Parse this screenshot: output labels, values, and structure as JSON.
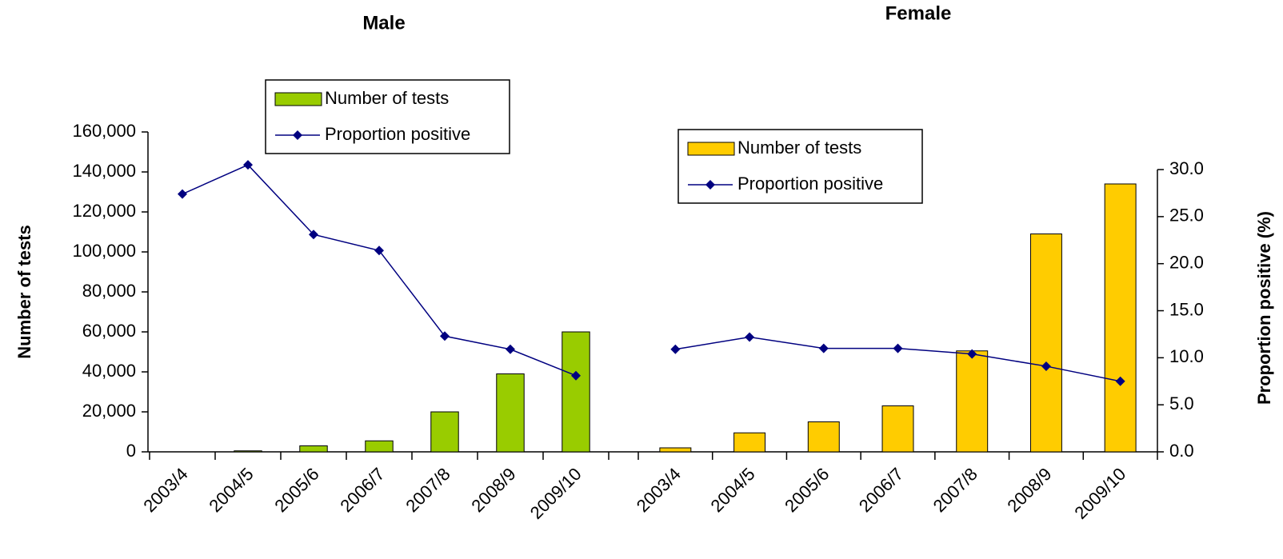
{
  "chart_data": [
    {
      "type": "bar_line",
      "title": "Male",
      "categories": [
        "2003/4",
        "2004/5",
        "2005/6",
        "2006/7",
        "2007/8",
        "2008/9",
        "2009/10"
      ],
      "series": [
        {
          "name": "Number of tests",
          "color": "#99cc00",
          "values": [
            0,
            500,
            3000,
            5500,
            20000,
            39000,
            60000
          ]
        },
        {
          "name": "Proportion positive",
          "color": "#000080",
          "axis": "y2",
          "values": [
            27.4,
            30.5,
            23.1,
            21.4,
            12.3,
            10.9,
            8.1
          ]
        }
      ],
      "ylabel": "Number of tests",
      "ylim": [
        0,
        160000
      ],
      "yticks": [
        0,
        {
          "value": 20000,
          "label": "20,000"
        },
        {
          "value": 40000,
          "label": "40,000"
        },
        {
          "value": 60000,
          "label": "60,000"
        },
        {
          "value": 80000,
          "label": "80,000"
        },
        {
          "value": 100000,
          "label": "100,000"
        },
        {
          "value": 120000,
          "label": "120,000"
        },
        {
          "value": 140000,
          "label": "140,000"
        },
        {
          "value": 160000,
          "label": "160,000"
        }
      ],
      "y2lim": [
        0,
        34
      ]
    },
    {
      "type": "bar_line",
      "title": "Female",
      "categories": [
        "2003/4",
        "2004/5",
        "2005/6",
        "2006/7",
        "2007/8",
        "2008/9",
        "2009/10"
      ],
      "series": [
        {
          "name": "Number of tests",
          "color": "#ffcc00",
          "values": [
            2000,
            9500,
            15000,
            23000,
            50500,
            109000,
            134000
          ]
        },
        {
          "name": "Proportion positive",
          "color": "#000080",
          "axis": "y2",
          "values": [
            10.9,
            12.2,
            11.0,
            11.0,
            10.4,
            9.1,
            7.5
          ]
        }
      ],
      "ylim": [
        0,
        160000
      ],
      "y2label": "Proportion positive (%)",
      "y2lim": [
        0,
        34
      ],
      "y2ticks": [
        {
          "value": 0,
          "label": "0.0"
        },
        {
          "value": 5,
          "label": "5.0"
        },
        {
          "value": 10,
          "label": "10.0"
        },
        {
          "value": 15,
          "label": "15.0"
        },
        {
          "value": 20,
          "label": "20.0"
        },
        {
          "value": 25,
          "label": "25.0"
        },
        {
          "value": 30,
          "label": "30.0"
        }
      ]
    }
  ]
}
